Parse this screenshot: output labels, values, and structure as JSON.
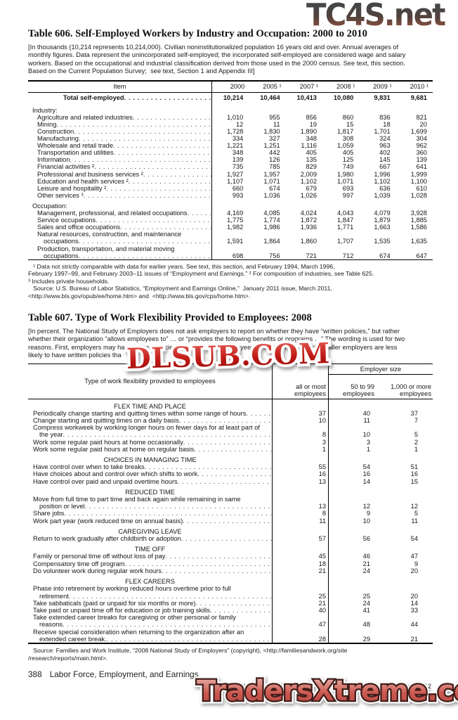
{
  "watermarks": {
    "tc4s": "TC4S.net",
    "dlsub": "DLSUB.COM",
    "traders": "TradersXtreme.com",
    "colors": {
      "tc4s_fill": "#53423c",
      "dlsub_red": "#c01915",
      "traders_salmon": "#cd5a51",
      "outline_white": "#ffffff"
    }
  },
  "table606": {
    "title": "Table 606. Self-Employed Workers by Industry and Occupation: 2000 to 2010",
    "intro": "[In thousands (10,214 represents 10,214,000). Civilian noninstitutionalized population 16 years old and over. Annual averages of\nmonthly figures. Data represent the unincorporated self-employed; the incorporated self-employed are considered wage and salary\nworkers. Based on the occupational and industrial classification derived from those used in the 2000 census. See text, this section.\nBased on the Current Population Survey;  see text, Section 1 and Appendix III]",
    "col_item": "Item",
    "years": [
      "2000",
      "2005 ¹",
      "2007 ¹",
      "2008 ¹",
      "2009 ¹",
      "2010 ¹"
    ],
    "total_row": {
      "label": "Total self-employed",
      "values": [
        "10,214",
        "10,464",
        "10,413",
        "10,080",
        "9,831",
        "9,681"
      ]
    },
    "sections": [
      {
        "heading": "Industry:",
        "rows": [
          {
            "label": "Agriculture and related industries",
            "values": [
              "1,010",
              "955",
              "856",
              "860",
              "836",
              "821"
            ]
          },
          {
            "label": "Mining",
            "values": [
              "12",
              "11",
              "19",
              "15",
              "18",
              "20"
            ]
          },
          {
            "label": "Construction",
            "values": [
              "1,728",
              "1,830",
              "1,890",
              "1,817",
              "1,701",
              "1,699"
            ]
          },
          {
            "label": "Manufacturing",
            "values": [
              "334",
              "327",
              "348",
              "308",
              "324",
              "304"
            ]
          },
          {
            "label": "Wholesale and retail trade",
            "values": [
              "1,221",
              "1,251",
              "1,116",
              "1,059",
              "963",
              "962"
            ]
          },
          {
            "label": "Transportation and utilities",
            "values": [
              "348",
              "442",
              "405",
              "405",
              "402",
              "360"
            ]
          },
          {
            "label": "Information",
            "values": [
              "139",
              "126",
              "135",
              "125",
              "145",
              "139"
            ]
          },
          {
            "label": "Financial activities ²",
            "values": [
              "735",
              "785",
              "829",
              "749",
              "667",
              "641"
            ]
          },
          {
            "label": "Professional and business services ²",
            "values": [
              "1,927",
              "1,957",
              "2,009",
              "1,980",
              "1,996",
              "1,999"
            ]
          },
          {
            "label": "Education and health services ²",
            "values": [
              "1,107",
              "1,071",
              "1,102",
              "1,071",
              "1,102",
              "1,100"
            ]
          },
          {
            "label": "Leisure and hospitality ²",
            "values": [
              "660",
              "674",
              "679",
              "693",
              "636",
              "610"
            ]
          },
          {
            "label": "Other services ³",
            "values": [
              "993",
              "1,036",
              "1,026",
              "997",
              "1,039",
              "1,028"
            ]
          }
        ]
      },
      {
        "heading": "Occupation:",
        "rows": [
          {
            "label": "Management, professional, and related occupations",
            "values": [
              "4,169",
              "4,085",
              "4,024",
              "4,043",
              "4,079",
              "3,928"
            ]
          },
          {
            "label": "Service occupations",
            "values": [
              "1,775",
              "1,774",
              "1,872",
              "1,847",
              "1,879",
              "1,885"
            ]
          },
          {
            "label": "Sales and office occupations",
            "values": [
              "1,982",
              "1,986",
              "1,936",
              "1,771",
              "1,663",
              "1,586"
            ]
          },
          {
            "lines": [
              "Natural resources, construction, and maintenance",
              "occupations"
            ],
            "values": [
              "1,591",
              "1,864",
              "1,860",
              "1,707",
              "1,535",
              "1,635"
            ]
          },
          {
            "lines": [
              "Production, transportation, and  material moving",
              "occupations"
            ],
            "values": [
              "698",
              "756",
              "721",
              "712",
              "674",
              "647"
            ]
          }
        ]
      }
    ],
    "footnotes": "   ¹ Data not strictly comparable with data for earlier years. See text, this section, and February 1994, March 1996,\nFebruary 1997–99, and February 2003–11 issues of “Employment and Earnings.” ² For composition of industries, see Table 625.\n³ Includes private households.\n   Source: U.S. Bureau of Labor Statistics, “Employment and Earnings Online,”  January 2011 issue, March 2011,\n<http://www.bls.gov/opub/ee/home.htm> and  <http://www.bls.gov/cps/home.htm>."
  },
  "table607": {
    "title": "Table 607. Type of Work Flexibility Provided to Employees: 2008",
    "intro": "[In percent. The National Study of Employers does not ask employers to report on whether they have “written policies,” but rather\nwhether their organization “allows employees to” … or “provides the following benefits or programs …” The wording is used for two\nreasons. First, employers may have written policies, but not “allow” employees to use them. Second, smaller employers are less\nlikely to have written policies tha",
    "head": {
      "stub": "Type of work flexibility provided to employees",
      "col1": "all or most\nemployees",
      "group": "Employer size",
      "col2": "50 to 99\nemployees",
      "col3": "1,000 or more\nemployees"
    },
    "sections": [
      {
        "heading": "FLEX TIME AND PLACE",
        "rows": [
          {
            "label": "Periodically change starting and quitting times within some range of hours",
            "values": [
              "37",
              "40",
              "37"
            ]
          },
          {
            "label": "Change starting and quitting times on a daily basis",
            "values": [
              "10",
              "11",
              "7"
            ]
          },
          {
            "lines": [
              "Compress workweek by working longer hours on fewer days for at least part of",
              "the year"
            ],
            "values": [
              "8",
              "10",
              "5"
            ]
          },
          {
            "label": "Work some regular paid hours at home occasionally",
            "values": [
              "3",
              "3",
              "2"
            ]
          },
          {
            "label": "Work some regular paid hours at home on regular basis",
            "values": [
              "1",
              "1",
              "1"
            ]
          }
        ]
      },
      {
        "heading": "CHOICES IN MANAGING TIME",
        "rows": [
          {
            "label": "Have control over when to take breaks",
            "values": [
              "55",
              "54",
              "51"
            ]
          },
          {
            "label": "Have choices about and control over which shifts to work",
            "values": [
              "16",
              "16",
              "16"
            ]
          },
          {
            "label": "Have control over paid and unpaid overtime hours",
            "values": [
              "13",
              "14",
              "15"
            ]
          }
        ]
      },
      {
        "heading": "REDUCED TIME",
        "rows": [
          {
            "lines": [
              "Move from full time to part time and back again while remaining in same",
              "position or level"
            ],
            "values": [
              "13",
              "12",
              "12"
            ]
          },
          {
            "label": "Share jobs",
            "values": [
              "8",
              "9",
              "5"
            ]
          },
          {
            "label": "Work part year (work reduced time on annual basis)",
            "values": [
              "11",
              "10",
              "11"
            ]
          }
        ]
      },
      {
        "heading": "CAREGIVING LEAVE",
        "rows": [
          {
            "label": "Return to work gradually after childbirth or adoption",
            "values": [
              "57",
              "56",
              "54"
            ]
          }
        ]
      },
      {
        "heading": "TIME OFF",
        "rows": [
          {
            "label": "Family or personal time off without loss of pay",
            "values": [
              "45",
              "46",
              "47"
            ]
          },
          {
            "label": "Compensatory time off program",
            "values": [
              "18",
              "21",
              "9"
            ]
          },
          {
            "label": "Do volunteer work during regular work hours",
            "values": [
              "21",
              "24",
              "20"
            ]
          }
        ]
      },
      {
        "heading": "FLEX CAREERS",
        "rows": [
          {
            "lines": [
              "Phase into retirement by working reduced hours overtime prior to full",
              "retirement"
            ],
            "values": [
              "25",
              "25",
              "20"
            ]
          },
          {
            "label": "Take sabbaticals (paid or unpaid for six months or more)",
            "values": [
              "21",
              "24",
              "14"
            ]
          },
          {
            "label": "Take paid or unpaid time off for education or job training skills",
            "values": [
              "40",
              "41",
              "33"
            ]
          },
          {
            "lines": [
              "Take extended career breaks for caregiving or other  personal or family",
              "reasons"
            ],
            "values": [
              "47",
              "48",
              "44"
            ]
          },
          {
            "lines": [
              "Receive special consideration when returning to the  organization after an",
              "extended career break."
            ],
            "values": [
              "28",
              "29",
              "21"
            ]
          }
        ]
      }
    ],
    "source": "   Source: Families and Work Institute, “2008 National Study of Employers” (copyright), <http://familiesandwork.org/site\n/research/reports/main.html>."
  },
  "footer": {
    "page": "388",
    "section": "Labor Force, Employment, and Earnings",
    "credit": "U.S. Census Bureau, Statistical Abstract of the United States: 2012"
  }
}
